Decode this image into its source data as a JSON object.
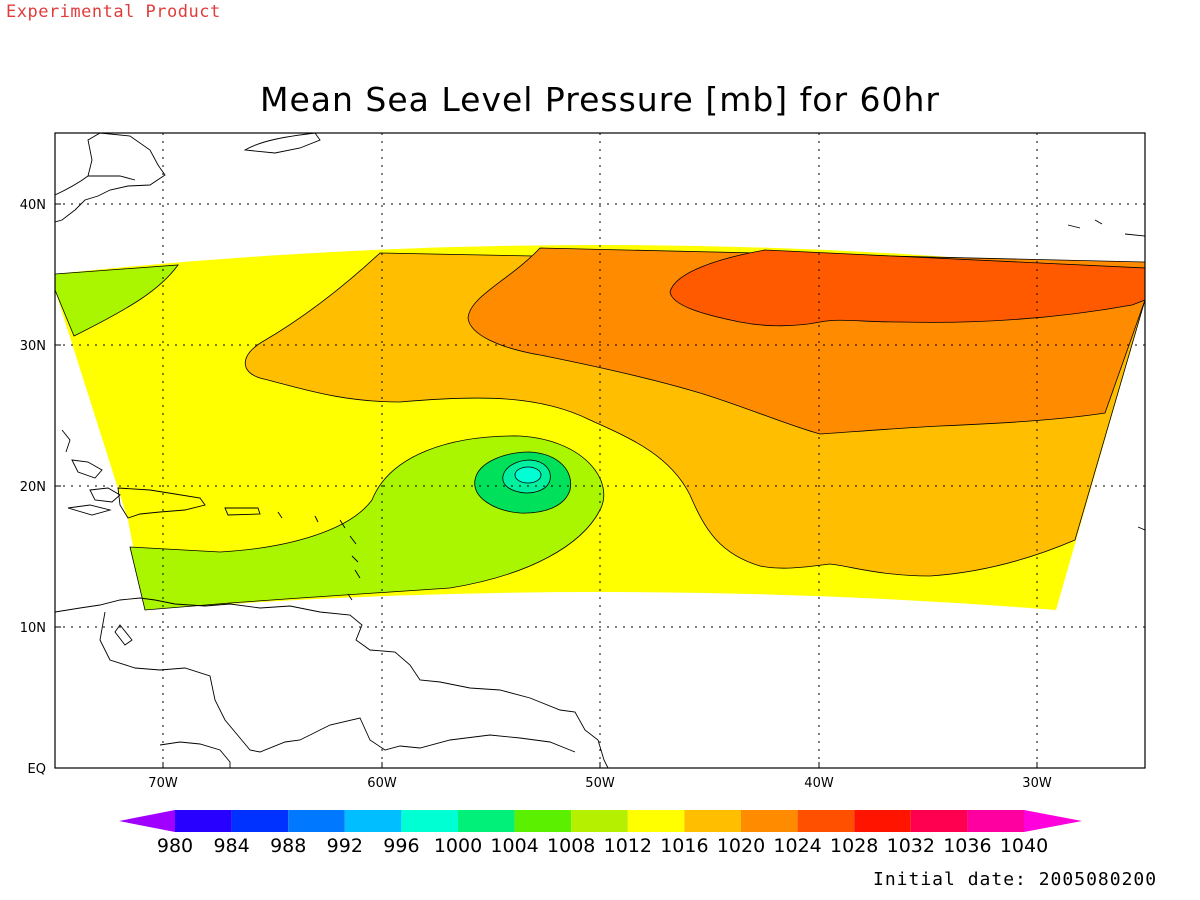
{
  "banner": "Experimental Product",
  "title": "Mean Sea Level Pressure [mb] for 60hr",
  "footer": "Initial date: 2005080200",
  "map": {
    "lon_ticks": [
      "70W",
      "60W",
      "50W",
      "40W",
      "30W"
    ],
    "lat_ticks": [
      "EQ",
      "10N",
      "20N",
      "30N",
      "40N"
    ],
    "grid": "dotted",
    "contour_field_colors": {
      "low_center": "#00ffd2",
      "level_1004": "#00e05a",
      "level_1008": "#aaf500",
      "level_1012": "#ffff00",
      "level_1016": "#ffbe00",
      "level_1020": "#ff8c00",
      "level_1024": "#ff5a00"
    }
  },
  "colorbar": {
    "labels": [
      "980",
      "984",
      "988",
      "992",
      "996",
      "1000",
      "1004",
      "1008",
      "1012",
      "1016",
      "1020",
      "1024",
      "1028",
      "1032",
      "1036",
      "1040"
    ],
    "colors": [
      "#a000ff",
      "#2800ff",
      "#0032ff",
      "#0078ff",
      "#00beff",
      "#00ffd2",
      "#00f07a",
      "#5af000",
      "#b4f000",
      "#ffff00",
      "#ffbe00",
      "#ff8c00",
      "#ff5000",
      "#ff1400",
      "#ff0050",
      "#ff00a0",
      "#ff00dc"
    ]
  }
}
